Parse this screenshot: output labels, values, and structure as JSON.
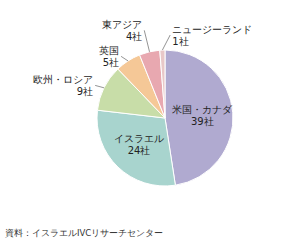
{
  "chart_data": {
    "type": "pie",
    "categories": [
      "米国・カナダ",
      "イスラエル",
      "欧州・ロシア",
      "英国",
      "東アジア",
      "ニュージーランド"
    ],
    "values": [
      39,
      24,
      9,
      5,
      4,
      1
    ],
    "value_labels": [
      "39社",
      "24社",
      "9社",
      "5社",
      "4社",
      "1社"
    ],
    "colors": [
      "#b0aad0",
      "#a8d4ce",
      "#c8dda8",
      "#f5c897",
      "#e8a8b0",
      "#e8c8c8"
    ],
    "data_labels": true,
    "annotations": [
      "資料：イスラエルIVCリサーチセンター"
    ]
  }
}
